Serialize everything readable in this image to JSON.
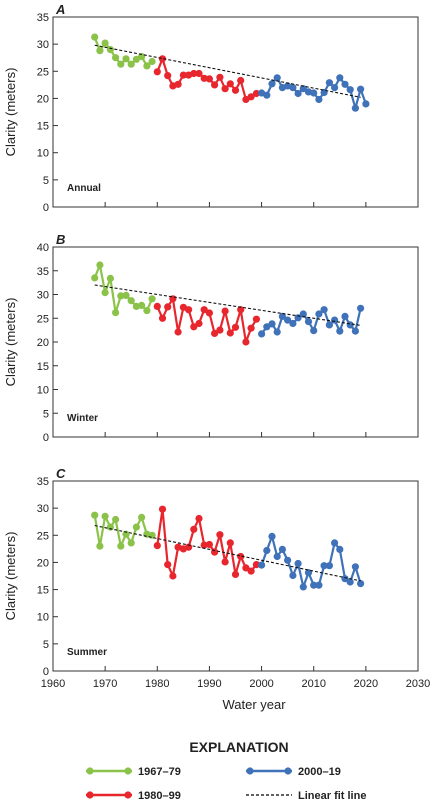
{
  "chart_data": [
    {
      "type": "line",
      "panel_letter": "A",
      "panel_label": "Annual",
      "ylabel": "Clarity (meters)",
      "xlim": [
        1960,
        2030
      ],
      "ylim": [
        0,
        35
      ],
      "yticks": [
        0,
        5,
        10,
        15,
        20,
        25,
        30,
        35
      ],
      "series": [
        {
          "name": "1967–79",
          "color": "#8bc34a",
          "x": [
            1968,
            1969,
            1970,
            1971,
            1972,
            1973,
            1974,
            1975,
            1976,
            1977,
            1978,
            1979
          ],
          "values": [
            31.3,
            28.8,
            30.2,
            29.0,
            27.5,
            26.3,
            27.3,
            26.3,
            27.2,
            27.7,
            26.0,
            26.8
          ]
        },
        {
          "name": "1980–99",
          "color": "#e8262d",
          "x": [
            1980,
            1981,
            1982,
            1983,
            1984,
            1985,
            1986,
            1987,
            1988,
            1989,
            1990,
            1991,
            1992,
            1993,
            1994,
            1995,
            1996,
            1997,
            1998,
            1999
          ],
          "values": [
            24.9,
            27.3,
            24.2,
            22.3,
            22.6,
            24.3,
            24.3,
            24.6,
            24.6,
            23.7,
            23.6,
            22.5,
            23.9,
            21.8,
            22.7,
            21.5,
            23.3,
            19.8,
            20.3,
            20.9
          ]
        },
        {
          "name": "2000–19",
          "color": "#3f72b8",
          "x": [
            2000,
            2001,
            2002,
            2003,
            2004,
            2005,
            2006,
            2007,
            2008,
            2009,
            2010,
            2011,
            2012,
            2013,
            2014,
            2015,
            2016,
            2017,
            2018,
            2019
          ],
          "values": [
            21.0,
            20.6,
            22.7,
            23.8,
            22.0,
            22.3,
            22.0,
            20.9,
            21.8,
            21.2,
            21.0,
            19.8,
            21.1,
            22.9,
            22.0,
            23.8,
            22.6,
            21.6,
            18.2,
            21.7
          ]
        }
      ],
      "extra_points": [
        {
          "x": 2020,
          "y": 19.0,
          "series": "2000–19"
        }
      ],
      "fit_line": {
        "x": [
          1968,
          2019
        ],
        "y": [
          29.8,
          20.2
        ]
      }
    },
    {
      "type": "line",
      "panel_letter": "B",
      "panel_label": "Winter",
      "ylabel": "Clarity (meters)",
      "xlim": [
        1960,
        2030
      ],
      "ylim": [
        0,
        40
      ],
      "yticks": [
        0,
        5,
        10,
        15,
        20,
        25,
        30,
        35,
        40
      ],
      "series": [
        {
          "name": "1967–79",
          "color": "#8bc34a",
          "x": [
            1968,
            1969,
            1970,
            1971,
            1972,
            1973,
            1974,
            1975,
            1976,
            1977,
            1978,
            1979
          ],
          "values": [
            33.5,
            36.2,
            30.4,
            33.4,
            26.2,
            29.7,
            29.8,
            28.7,
            27.5,
            27.7,
            26.6,
            29.1
          ]
        },
        {
          "name": "1980–99",
          "color": "#e8262d",
          "x": [
            1980,
            1981,
            1982,
            1983,
            1984,
            1985,
            1986,
            1987,
            1988,
            1989,
            1990,
            1991,
            1992,
            1993,
            1994,
            1995,
            1996,
            1997,
            1998,
            1999
          ],
          "values": [
            27.5,
            25.0,
            27.4,
            29.1,
            22.1,
            27.3,
            26.8,
            23.2,
            23.9,
            26.8,
            26.1,
            21.8,
            22.5,
            26.5,
            21.9,
            23.1,
            26.8,
            20.0,
            22.9,
            24.8
          ]
        },
        {
          "name": "2000–19",
          "color": "#3f72b8",
          "x": [
            2000,
            2001,
            2002,
            2003,
            2004,
            2005,
            2006,
            2007,
            2008,
            2009,
            2010,
            2011,
            2012,
            2013,
            2014,
            2015,
            2016,
            2017,
            2018,
            2019
          ],
          "values": [
            21.7,
            23.2,
            23.8,
            22.1,
            25.4,
            24.6,
            23.9,
            25.1,
            25.9,
            24.3,
            22.4,
            25.9,
            26.8,
            23.6,
            24.6,
            22.3,
            25.4,
            23.6,
            22.3,
            27.1
          ]
        }
      ],
      "fit_line": {
        "x": [
          1968,
          2019
        ],
        "y": [
          32.0,
          23.5
        ]
      }
    },
    {
      "type": "line",
      "panel_letter": "C",
      "panel_label": "Summer",
      "ylabel": "Clarity (meters)",
      "xlabel": "Water year",
      "xlim": [
        1960,
        2030
      ],
      "ylim": [
        0,
        35
      ],
      "yticks": [
        0,
        5,
        10,
        15,
        20,
        25,
        30,
        35
      ],
      "xticks": [
        1960,
        1970,
        1980,
        1990,
        2000,
        2010,
        2020,
        2030
      ],
      "series": [
        {
          "name": "1967–79",
          "color": "#8bc34a",
          "x": [
            1968,
            1969,
            1970,
            1971,
            1972,
            1973,
            1974,
            1975,
            1976,
            1977,
            1978,
            1979
          ],
          "values": [
            28.7,
            23.0,
            28.5,
            26.5,
            27.9,
            23.0,
            25.2,
            23.6,
            26.5,
            28.3,
            25.2,
            25.0
          ]
        },
        {
          "name": "1980–99",
          "color": "#e8262d",
          "x": [
            1980,
            1981,
            1982,
            1983,
            1984,
            1985,
            1986,
            1987,
            1988,
            1989,
            1990,
            1991,
            1992,
            1993,
            1994,
            1995,
            1996,
            1997,
            1998,
            1999
          ],
          "values": [
            23.1,
            29.8,
            19.6,
            17.5,
            22.8,
            22.5,
            22.8,
            26.1,
            28.1,
            23.2,
            23.3,
            21.9,
            25.1,
            20.1,
            23.6,
            17.8,
            21.1,
            19.0,
            18.4,
            19.6
          ]
        },
        {
          "name": "2000–19",
          "color": "#3f72b8",
          "x": [
            2000,
            2001,
            2002,
            2003,
            2004,
            2005,
            2006,
            2007,
            2008,
            2009,
            2010,
            2011,
            2012,
            2013,
            2014,
            2015,
            2016,
            2017,
            2018,
            2019
          ],
          "values": [
            19.5,
            22.2,
            24.8,
            21.1,
            22.4,
            20.4,
            17.6,
            19.8,
            15.5,
            18.1,
            15.8,
            15.8,
            19.4,
            19.4,
            23.6,
            22.4,
            17.0,
            16.4,
            19.2,
            16.1
          ]
        }
      ],
      "fit_line": {
        "x": [
          1968,
          2019
        ],
        "y": [
          26.8,
          16.6
        ]
      }
    }
  ],
  "legend": {
    "title": "EXPLANATION",
    "items": [
      {
        "label": "1967–79",
        "color": "#8bc34a",
        "kind": "marker-line"
      },
      {
        "label": "2000–19",
        "color": "#3f72b8",
        "kind": "marker-line"
      },
      {
        "label": "1980–99",
        "color": "#e8262d",
        "kind": "marker-line"
      },
      {
        "label": "Linear fit line",
        "color": "#000000",
        "kind": "dashed"
      }
    ]
  }
}
